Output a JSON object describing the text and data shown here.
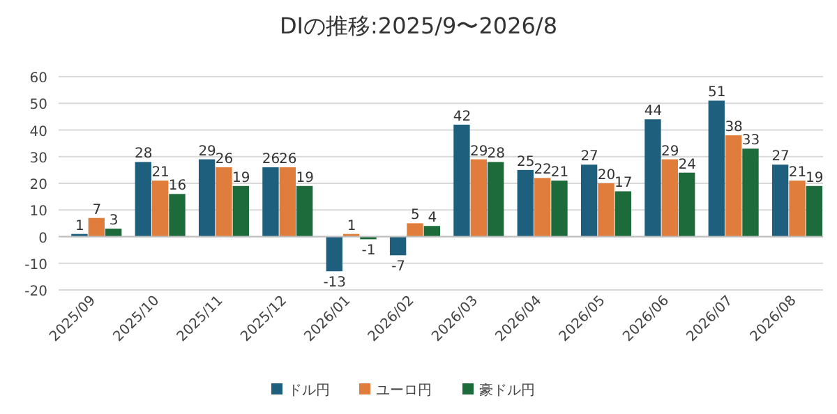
{
  "chart_data": {
    "type": "bar",
    "title": "DIの推移:2025/9〜2026/8",
    "categories": [
      "2025/09",
      "2025/10",
      "2025/11",
      "2025/12",
      "2026/01",
      "2026/02",
      "2026/03",
      "2026/04",
      "2026/05",
      "2026/06",
      "2026/07",
      "2026/08"
    ],
    "series": [
      {
        "name": "ドル円",
        "color": "#1f5f7e",
        "values": [
          1,
          28,
          29,
          26,
          -13,
          -7,
          42,
          25,
          27,
          44,
          51,
          27
        ]
      },
      {
        "name": "ユーロ円",
        "color": "#e07c3c",
        "values": [
          7,
          21,
          26,
          26,
          1,
          5,
          29,
          22,
          20,
          29,
          38,
          21
        ]
      },
      {
        "name": "豪ドル円",
        "color": "#1d6b3b",
        "values": [
          3,
          16,
          19,
          19,
          -1,
          4,
          28,
          21,
          17,
          24,
          33,
          19
        ]
      }
    ],
    "ylim": [
      -20,
      60
    ],
    "yticks": [
      -20,
      -10,
      0,
      10,
      20,
      30,
      40,
      50,
      60
    ],
    "grid": "y",
    "legend": "bottom",
    "data_labels": true
  }
}
